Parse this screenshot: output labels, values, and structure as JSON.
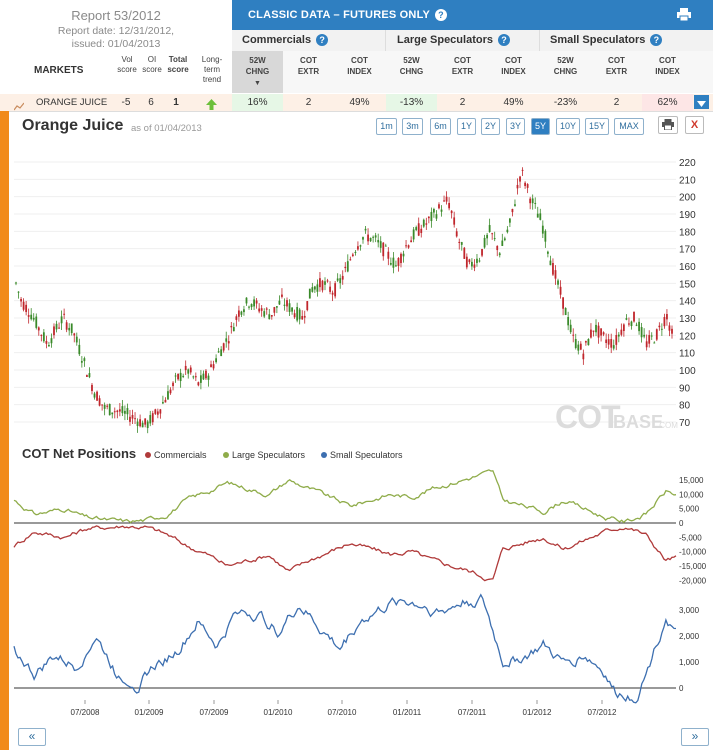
{
  "report": {
    "title": "Report 53/2012",
    "report_date": "Report date: 12/31/2012,",
    "issued": "issued: 01/04/2013"
  },
  "header": {
    "classic_title": "CLASSIC DATA – FUTURES ONLY",
    "groups": [
      "Commercials",
      "Large Speculators",
      "Small Speculators"
    ],
    "markets_label": "MARKETS",
    "left_cols": [
      [
        "Vol",
        "score"
      ],
      [
        "OI",
        "score"
      ],
      [
        "Total",
        "score"
      ],
      [
        "Long-",
        "term",
        "trend"
      ]
    ],
    "col_headers": [
      [
        "52W",
        "CHNG"
      ],
      [
        "COT",
        "EXTR"
      ],
      [
        "COT",
        "INDEX"
      ],
      [
        "52W",
        "CHNG"
      ],
      [
        "COT",
        "EXTR"
      ],
      [
        "COT",
        "INDEX"
      ],
      [
        "52W",
        "CHNG"
      ],
      [
        "COT",
        "EXTR"
      ],
      [
        "COT",
        "INDEX"
      ]
    ]
  },
  "row": {
    "market": "ORANGE JUICE",
    "vol_score": "-5",
    "oi_score": "6",
    "total_score": "1",
    "values": [
      "16%",
      "2",
      "49%",
      "-13%",
      "2",
      "49%",
      "-23%",
      "2",
      "62%"
    ]
  },
  "chart": {
    "title": "Orange Juice",
    "as_of": "as of 01/04/2013",
    "timeframes": [
      "1m",
      "3m",
      "6m",
      "1Y",
      "2Y",
      "3Y",
      "5Y",
      "10Y",
      "15Y",
      "MAX"
    ],
    "active_timeframe": "5Y",
    "watermark_a": "COT",
    "watermark_b": "BASE",
    "watermark_c": ".COM",
    "cot_title": "COT Net Positions",
    "legend": [
      "Commercials",
      "Large Speculators",
      "Small Speculators"
    ]
  },
  "colors": {
    "commercials": "#b03a3a",
    "large": "#8fac4a",
    "small": "#3d6fb0",
    "accent": "#2f7fc1",
    "orange": "#f18a1a",
    "up_candle": "#3a8a2a",
    "down_candle": "#c0262c"
  },
  "chart_data": [
    {
      "type": "candlestick",
      "title": "Orange Juice",
      "y_ticks": [
        70,
        80,
        90,
        100,
        110,
        120,
        130,
        140,
        150,
        160,
        170,
        180,
        190,
        200,
        210,
        220
      ],
      "ylim": [
        62,
        226
      ],
      "x_ticks": [
        "07/2008",
        "01/2009",
        "07/2009",
        "01/2010",
        "07/2010",
        "01/2011",
        "07/2011",
        "01/2012",
        "07/2012"
      ],
      "x_range": [
        "01/2008",
        "01/2013"
      ],
      "price_path": [
        [
          0,
          150
        ],
        [
          0.5,
          140
        ],
        [
          1.5,
          132
        ],
        [
          3,
          115
        ],
        [
          4.5,
          130
        ],
        [
          5.5,
          122
        ],
        [
          6.5,
          105
        ],
        [
          7.5,
          88
        ],
        [
          8.5,
          78
        ],
        [
          10,
          76
        ],
        [
          11.5,
          72
        ],
        [
          12.5,
          68
        ],
        [
          13.5,
          75
        ],
        [
          14.5,
          85
        ],
        [
          15.5,
          95
        ],
        [
          16.5,
          100
        ],
        [
          17.5,
          92
        ],
        [
          18.5,
          98
        ],
        [
          19.5,
          110
        ],
        [
          20.5,
          120
        ],
        [
          21.5,
          135
        ],
        [
          22.5,
          140
        ],
        [
          23.5,
          135
        ],
        [
          24.5,
          132
        ],
        [
          25.5,
          140
        ],
        [
          26.5,
          135
        ],
        [
          27.5,
          130
        ],
        [
          28.5,
          148
        ],
        [
          29.5,
          150
        ],
        [
          30.5,
          145
        ],
        [
          31.5,
          155
        ],
        [
          32.5,
          170
        ],
        [
          33.5,
          178
        ],
        [
          34.5,
          175
        ],
        [
          35.5,
          168
        ],
        [
          36.5,
          160
        ],
        [
          37.5,
          172
        ],
        [
          38.5,
          180
        ],
        [
          39.5,
          185
        ],
        [
          40.5,
          192
        ],
        [
          41.5,
          198
        ],
        [
          42.5,
          175
        ],
        [
          43.5,
          160
        ],
        [
          44.5,
          165
        ],
        [
          45.5,
          180
        ],
        [
          46.5,
          168
        ],
        [
          47.5,
          185
        ],
        [
          48.5,
          215
        ],
        [
          49.5,
          198
        ],
        [
          50.5,
          185
        ],
        [
          51.5,
          160
        ],
        [
          52.5,
          140
        ],
        [
          53.5,
          118
        ],
        [
          54.5,
          110
        ],
        [
          55.5,
          125
        ],
        [
          56.5,
          118
        ],
        [
          57.5,
          115
        ],
        [
          58.5,
          128
        ],
        [
          59.5,
          130
        ],
        [
          60.5,
          115
        ],
        [
          61.5,
          120
        ],
        [
          62.5,
          132
        ],
        [
          63,
          120
        ]
      ]
    },
    {
      "type": "line",
      "title": "COT Net Positions",
      "y_ticks_upper": [
        15000,
        10000,
        5000,
        0,
        -5000,
        -10000,
        -15000,
        -20000
      ],
      "y_ticks_lower": [
        3000,
        2000,
        1000,
        0
      ],
      "x_ticks": [
        "07/2008",
        "01/2009",
        "07/2009",
        "01/2010",
        "07/2010",
        "01/2011",
        "07/2011",
        "01/2012",
        "07/2012"
      ],
      "series": [
        {
          "name": "Large Speculators",
          "values": [
            [
              0,
              8000
            ],
            [
              2,
              3000
            ],
            [
              5,
              5000
            ],
            [
              7,
              2000
            ],
            [
              9,
              1000
            ],
            [
              11,
              500
            ],
            [
              13,
              1000
            ],
            [
              15,
              3000
            ],
            [
              17,
              8000
            ],
            [
              19,
              11000
            ],
            [
              21,
              14000
            ],
            [
              23,
              12000
            ],
            [
              25,
              10000
            ],
            [
              27,
              15000
            ],
            [
              29,
              12000
            ],
            [
              31,
              9000
            ],
            [
              33,
              6000
            ],
            [
              35,
              8000
            ],
            [
              37,
              10000
            ],
            [
              39,
              9000
            ],
            [
              41,
              12000
            ],
            [
              43,
              14000
            ],
            [
              45,
              16000
            ],
            [
              47,
              18000
            ],
            [
              48,
              8000
            ],
            [
              50,
              6000
            ],
            [
              52,
              4000
            ],
            [
              54,
              8000
            ],
            [
              56,
              5000
            ],
            [
              58,
              2000
            ],
            [
              60,
              500
            ],
            [
              62,
              3000
            ],
            [
              64,
              11000
            ],
            [
              65,
              10000
            ]
          ]
        },
        {
          "name": "Commercials",
          "values": [
            [
              0,
              -8000
            ],
            [
              2,
              -3000
            ],
            [
              5,
              -5000
            ],
            [
              7,
              -2000
            ],
            [
              9,
              -1500
            ],
            [
              11,
              -1000
            ],
            [
              13,
              -1500
            ],
            [
              15,
              -4000
            ],
            [
              17,
              -8000
            ],
            [
              19,
              -11000
            ],
            [
              21,
              -15000
            ],
            [
              23,
              -13000
            ],
            [
              25,
              -11000
            ],
            [
              27,
              -17000
            ],
            [
              29,
              -13000
            ],
            [
              31,
              -10000
            ],
            [
              33,
              -7000
            ],
            [
              35,
              -9000
            ],
            [
              37,
              -11000
            ],
            [
              39,
              -10000
            ],
            [
              41,
              -13000
            ],
            [
              43,
              -15000
            ],
            [
              45,
              -17000
            ],
            [
              47,
              -20000
            ],
            [
              48,
              -9000
            ],
            [
              50,
              -7000
            ],
            [
              52,
              -5000
            ],
            [
              54,
              -9000
            ],
            [
              56,
              -6000
            ],
            [
              58,
              -3000
            ],
            [
              60,
              -1000
            ],
            [
              62,
              -4000
            ],
            [
              64,
              -13000
            ],
            [
              65,
              -12000
            ]
          ]
        },
        {
          "name": "Small Speculators",
          "values": [
            [
              0,
              1500
            ],
            [
              2,
              500
            ],
            [
              4,
              1200
            ],
            [
              6,
              800
            ],
            [
              8,
              2000
            ],
            [
              10,
              600
            ],
            [
              12,
              200
            ],
            [
              14,
              900
            ],
            [
              16,
              1400
            ],
            [
              18,
              2500
            ],
            [
              20,
              1600
            ],
            [
              22,
              3000
            ],
            [
              24,
              2800
            ],
            [
              26,
              2200
            ],
            [
              28,
              3200
            ],
            [
              30,
              2300
            ],
            [
              32,
              1500
            ],
            [
              34,
              2600
            ],
            [
              36,
              3000
            ],
            [
              38,
              3400
            ],
            [
              40,
              3200
            ],
            [
              42,
              2900
            ],
            [
              44,
              3300
            ],
            [
              46,
              3400
            ],
            [
              48,
              1000
            ],
            [
              50,
              1200
            ],
            [
              52,
              1600
            ],
            [
              54,
              900
            ],
            [
              56,
              1300
            ],
            [
              58,
              600
            ],
            [
              59,
              -200
            ],
            [
              61,
              -300
            ],
            [
              62,
              500
            ],
            [
              63,
              1600
            ],
            [
              64,
              2800
            ],
            [
              65,
              2100
            ]
          ]
        }
      ]
    }
  ]
}
